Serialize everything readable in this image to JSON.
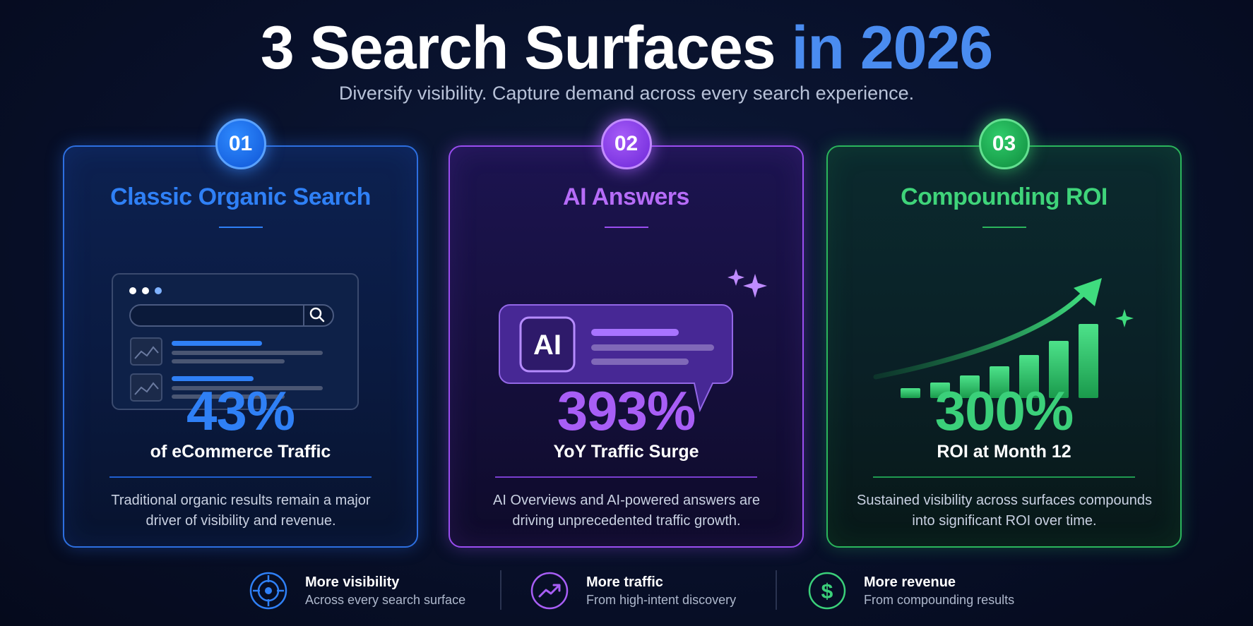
{
  "header": {
    "title_main": "3 Search Surfaces",
    "title_accent": "in 2026",
    "subtitle": "Diversify visibility. Capture demand across every search experience."
  },
  "cards": [
    {
      "number": "01",
      "title": "Classic Organic Search",
      "stat": "43%",
      "stat_label": "of eCommerce Traffic",
      "description": "Traditional organic results remain a major driver of visibility and revenue.",
      "color": "#2f80f6",
      "illustration": "browser-search-results"
    },
    {
      "number": "02",
      "title": "AI Answers",
      "stat": "393%",
      "stat_label": "YoY Traffic Surge",
      "description": "AI Overviews and AI-powered answers are driving unprecedented traffic growth.",
      "color": "#a85ef6",
      "illustration": "ai-chat-bubble",
      "badge_text": "AI"
    },
    {
      "number": "03",
      "title": "Compounding ROI",
      "stat": "300%",
      "stat_label": "ROI at Month 12",
      "description": "Sustained visibility across surfaces compounds into significant ROI over time.",
      "color": "#3bd07a",
      "illustration": "growth-bar-chart"
    }
  ],
  "footer": [
    {
      "icon": "target-icon",
      "title": "More visibility",
      "subtitle": "Across every search surface",
      "color": "#2f80f6"
    },
    {
      "icon": "trend-up-icon",
      "title": "More traffic",
      "subtitle": "From high-intent discovery",
      "color": "#a85ef6"
    },
    {
      "icon": "dollar-icon",
      "title": "More revenue",
      "subtitle": "From compounding results",
      "color": "#3bd07a"
    }
  ]
}
